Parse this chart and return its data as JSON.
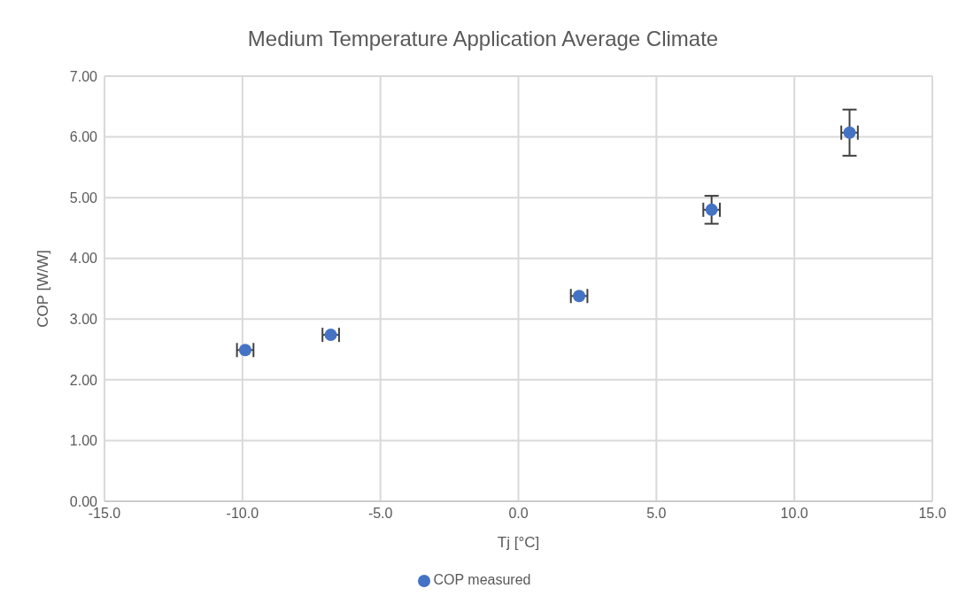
{
  "chart_data": {
    "type": "scatter",
    "title": "Medium Temperature Application Average Climate",
    "xlabel": "Tj [°C]",
    "ylabel": "COP [W/W]",
    "x": [
      -9.9,
      -6.8,
      2.2,
      7.0,
      12.0
    ],
    "series": [
      {
        "name": "COP measured",
        "color": "#4472c4",
        "values": [
          2.49,
          2.74,
          3.38,
          4.8,
          6.07
        ],
        "errors": [
          null,
          null,
          null,
          0.23,
          0.38
        ],
        "xerrors": [
          0.3,
          0.3,
          0.3,
          0.3,
          0.3
        ]
      }
    ],
    "xlim": [
      -15,
      15
    ],
    "xticks": [
      {
        "value": -15,
        "label": "-15.0"
      },
      {
        "value": -10,
        "label": "-10.0"
      },
      {
        "value": -5,
        "label": "-5.0"
      },
      {
        "value": 0,
        "label": "0.0"
      },
      {
        "value": 5,
        "label": "5.0"
      },
      {
        "value": 10,
        "label": "10.0"
      },
      {
        "value": 15,
        "label": "15.0"
      }
    ],
    "ylim": [
      0,
      7
    ],
    "yticks": [
      {
        "value": 0,
        "label": "0.00"
      },
      {
        "value": 1,
        "label": "1.00"
      },
      {
        "value": 2,
        "label": "2.00"
      },
      {
        "value": 3,
        "label": "3.00"
      },
      {
        "value": 4,
        "label": "4.00"
      },
      {
        "value": 5,
        "label": "5.00"
      },
      {
        "value": 6,
        "label": "6.00"
      },
      {
        "value": 7,
        "label": "7.00"
      }
    ],
    "grid": true,
    "legend": "bottom",
    "marker": "circle"
  }
}
